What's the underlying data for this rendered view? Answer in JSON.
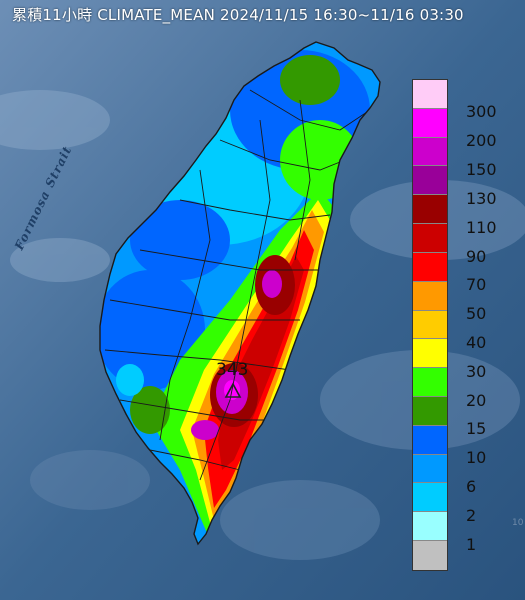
{
  "header": {
    "title": "累積11小時 CLIMATE_MEAN 2024/11/15 16:30~11/16 03:30"
  },
  "map": {
    "region": "Taiwan",
    "sea_label": "Formosa Strait",
    "peak_value": "343",
    "peak_marker": "triangle-icon",
    "partial_edge_text": "10"
  },
  "legend": {
    "levels": [
      {
        "label": "300",
        "color": "#ffccf7"
      },
      {
        "label": "200",
        "color": "#ff00ff"
      },
      {
        "label": "150",
        "color": "#cc00cc"
      },
      {
        "label": "130",
        "color": "#990099"
      },
      {
        "label": "110",
        "color": "#990000"
      },
      {
        "label": "90",
        "color": "#cc0000"
      },
      {
        "label": "70",
        "color": "#ff0000"
      },
      {
        "label": "50",
        "color": "#ff9900"
      },
      {
        "label": "40",
        "color": "#ffcc00"
      },
      {
        "label": "30",
        "color": "#ffff00"
      },
      {
        "label": "20",
        "color": "#33ff00"
      },
      {
        "label": "15",
        "color": "#339900"
      },
      {
        "label": "10",
        "color": "#0066ff"
      },
      {
        "label": "6",
        "color": "#0099ff"
      },
      {
        "label": "2",
        "color": "#00ccff"
      },
      {
        "label": "1",
        "color": "#99ffff"
      },
      {
        "label": "",
        "color": "#c0c0c0"
      }
    ]
  },
  "colors": {
    "sea": "#2e5883",
    "border": "#1a1a1a"
  }
}
